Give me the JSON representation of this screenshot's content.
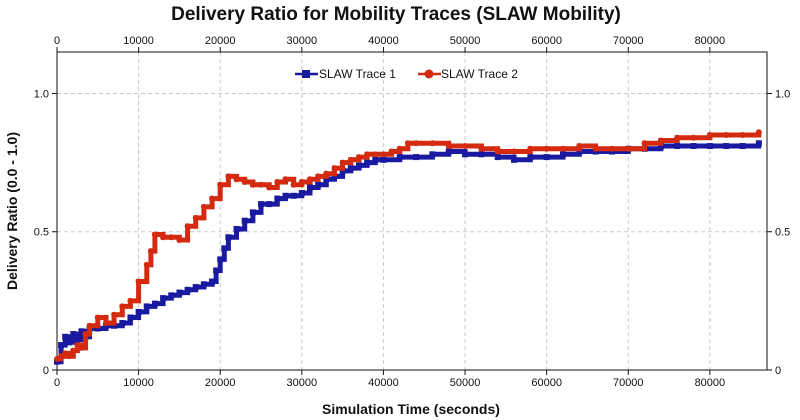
{
  "chart_data": {
    "type": "line",
    "title": "Delivery Ratio for Mobility Traces (SLAW Mobility)",
    "xlabel": "Simulation Time (seconds)",
    "ylabel": "Delivery Ratio (0.0 - 1.0)",
    "xlim": [
      0,
      87000
    ],
    "ylim": [
      0,
      1.15
    ],
    "xticks": [
      0,
      10000,
      20000,
      30000,
      40000,
      50000,
      60000,
      70000,
      80000
    ],
    "xtick_labels": [
      "0",
      "10000",
      "20000",
      "30000",
      "40000",
      "50000",
      "60000",
      "70000",
      "80000"
    ],
    "yticks": [
      0,
      0.5,
      1.0
    ],
    "ytick_labels": [
      "0",
      "0.5",
      "1.0"
    ],
    "grid": true,
    "legend_position": "top-center",
    "colors": {
      "SLAW Trace 1": "#1a1aa0",
      "SLAW Trace 2": "#d42a10"
    },
    "series": [
      {
        "name": "SLAW Trace 1",
        "marker": "square",
        "x": [
          0,
          500,
          1000,
          1500,
          2000,
          2500,
          3000,
          3500,
          4000,
          5000,
          6000,
          7000,
          8000,
          9000,
          10000,
          11000,
          12000,
          13000,
          14000,
          15000,
          16000,
          17000,
          18000,
          19000,
          19500,
          20000,
          20500,
          21000,
          22000,
          23000,
          24000,
          25000,
          26000,
          27000,
          28000,
          29000,
          30000,
          31000,
          32000,
          33000,
          34000,
          35000,
          36000,
          37000,
          38000,
          39000,
          40000,
          42000,
          44000,
          46000,
          48000,
          50000,
          52000,
          54000,
          56000,
          58000,
          60000,
          62000,
          64000,
          66000,
          68000,
          70000,
          72000,
          74000,
          76000,
          78000,
          80000,
          82000,
          84000,
          86000
        ],
        "y": [
          0.03,
          0.09,
          0.12,
          0.1,
          0.13,
          0.11,
          0.14,
          0.12,
          0.15,
          0.15,
          0.16,
          0.16,
          0.17,
          0.19,
          0.21,
          0.23,
          0.24,
          0.26,
          0.27,
          0.28,
          0.29,
          0.3,
          0.31,
          0.32,
          0.36,
          0.4,
          0.44,
          0.48,
          0.51,
          0.54,
          0.57,
          0.6,
          0.6,
          0.62,
          0.63,
          0.63,
          0.64,
          0.66,
          0.67,
          0.69,
          0.7,
          0.72,
          0.73,
          0.74,
          0.75,
          0.76,
          0.76,
          0.77,
          0.77,
          0.78,
          0.79,
          0.78,
          0.78,
          0.77,
          0.76,
          0.77,
          0.77,
          0.78,
          0.79,
          0.79,
          0.79,
          0.8,
          0.8,
          0.81,
          0.81,
          0.81,
          0.81,
          0.81,
          0.81,
          0.82
        ]
      },
      {
        "name": "SLAW Trace 2",
        "marker": "circle",
        "x": [
          0,
          500,
          1000,
          1500,
          2000,
          2500,
          3000,
          3500,
          4000,
          5000,
          6000,
          7000,
          8000,
          9000,
          10000,
          11000,
          11500,
          12000,
          13000,
          14000,
          15000,
          16000,
          17000,
          18000,
          19000,
          20000,
          21000,
          22000,
          23000,
          24000,
          25000,
          26000,
          27000,
          28000,
          29000,
          30000,
          31000,
          32000,
          33000,
          34000,
          35000,
          36000,
          37000,
          38000,
          39000,
          40000,
          41000,
          42000,
          43000,
          44000,
          46000,
          48000,
          50000,
          52000,
          54000,
          56000,
          58000,
          60000,
          62000,
          64000,
          66000,
          68000,
          70000,
          72000,
          74000,
          76000,
          78000,
          80000,
          82000,
          84000,
          86000
        ],
        "y": [
          0.04,
          0.05,
          0.06,
          0.05,
          0.07,
          0.09,
          0.08,
          0.13,
          0.16,
          0.19,
          0.17,
          0.2,
          0.23,
          0.25,
          0.32,
          0.38,
          0.43,
          0.49,
          0.48,
          0.48,
          0.47,
          0.52,
          0.55,
          0.59,
          0.62,
          0.67,
          0.7,
          0.69,
          0.68,
          0.67,
          0.67,
          0.66,
          0.68,
          0.69,
          0.67,
          0.68,
          0.69,
          0.7,
          0.71,
          0.73,
          0.75,
          0.76,
          0.77,
          0.78,
          0.78,
          0.78,
          0.79,
          0.8,
          0.82,
          0.82,
          0.82,
          0.81,
          0.81,
          0.8,
          0.79,
          0.79,
          0.8,
          0.8,
          0.8,
          0.81,
          0.8,
          0.8,
          0.8,
          0.82,
          0.83,
          0.84,
          0.84,
          0.85,
          0.85,
          0.85,
          0.86
        ]
      }
    ]
  }
}
